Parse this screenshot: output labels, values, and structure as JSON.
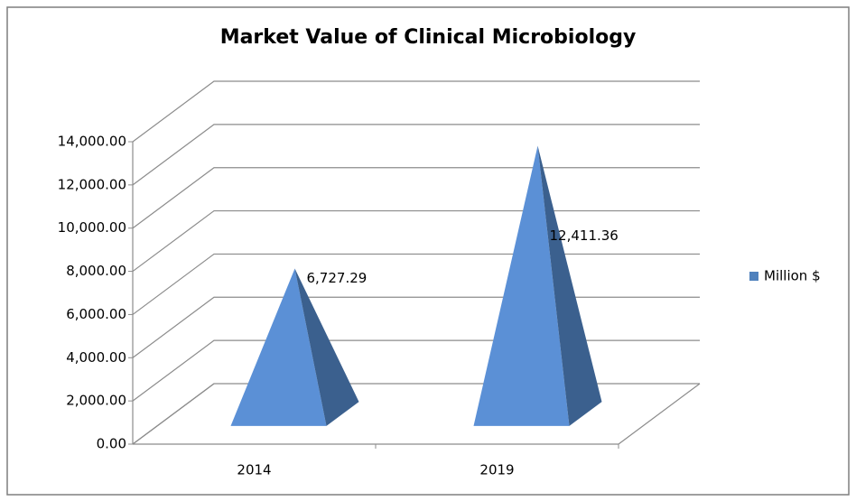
{
  "chart_data": {
    "type": "pyramid3d",
    "title": "Market Value of Clinical Microbiology",
    "categories": [
      "2014",
      "2019"
    ],
    "series": [
      {
        "name": "Million $",
        "color": "#4f81bd",
        "values": [
          6727.29,
          12411.36
        ],
        "value_labels": [
          "6,727.29",
          "12,411.36"
        ]
      }
    ],
    "ylim": [
      0,
      14000
    ],
    "yticks": [
      {
        "value": 0,
        "label": "0.00"
      },
      {
        "value": 2000,
        "label": "2,000.00"
      },
      {
        "value": 4000,
        "label": "4,000.00"
      },
      {
        "value": 6000,
        "label": "6,000.00"
      },
      {
        "value": 8000,
        "label": "8,000.00"
      },
      {
        "value": 10000,
        "label": "10,000.00"
      },
      {
        "value": 12000,
        "label": "12,000.00"
      },
      {
        "value": 14000,
        "label": "14,000.00"
      }
    ],
    "grid": true,
    "legend": "right"
  }
}
